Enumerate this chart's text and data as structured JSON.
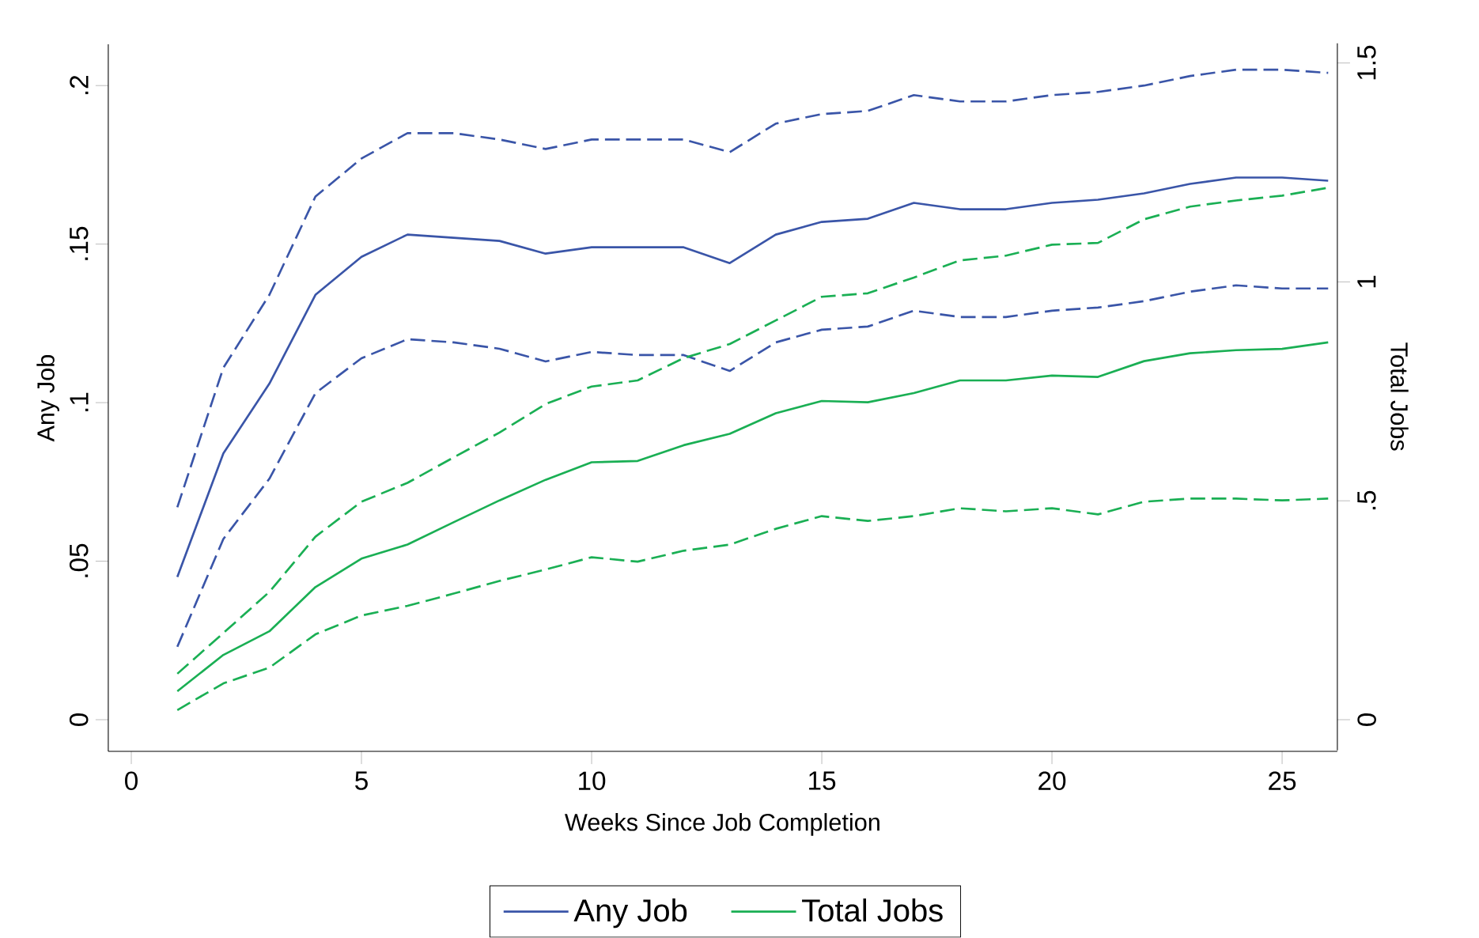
{
  "chart_data": {
    "type": "line",
    "xlabel": "Weeks Since Job Completion",
    "ylabel": "Any Job",
    "y2label": "Total Jobs",
    "x": [
      1,
      2,
      3,
      4,
      5,
      6,
      7,
      8,
      9,
      10,
      11,
      12,
      13,
      14,
      15,
      16,
      17,
      18,
      19,
      20,
      21,
      22,
      23,
      24,
      25,
      26
    ],
    "xlim": [
      -0.5,
      26.2
    ],
    "xticks": [
      0,
      5,
      10,
      15,
      20,
      25
    ],
    "ylim": [
      -0.01,
      0.213
    ],
    "yticks": [
      {
        "value": 0,
        "label": "0"
      },
      {
        "value": 0.05,
        "label": ".05"
      },
      {
        "value": 0.1,
        "label": ".1"
      },
      {
        "value": 0.15,
        "label": ".15"
      },
      {
        "value": 0.2,
        "label": ".2"
      }
    ],
    "y2lim": [
      -0.07,
      1.545
    ],
    "y2ticks": [
      0,
      {
        "value": 0.5,
        "label": ".5"
      },
      1,
      1.5
    ],
    "legend": "bottom",
    "grid": false,
    "marker": "none",
    "series": [
      {
        "name": "Any Job",
        "color": "#3a55a8",
        "line_style": "solid",
        "axis": "y",
        "values": [
          0.045,
          0.084,
          0.106,
          0.134,
          0.146,
          0.153,
          0.152,
          0.151,
          0.147,
          0.149,
          0.149,
          0.149,
          0.144,
          0.153,
          0.157,
          0.158,
          0.163,
          0.161,
          0.161,
          0.163,
          0.164,
          0.166,
          0.169,
          0.171,
          0.171,
          0.17
        ]
      },
      {
        "color": "#3a55a8",
        "line_style": "dashed",
        "axis": "y",
        "values": [
          0.067,
          0.111,
          0.134,
          0.165,
          0.177,
          0.185,
          0.185,
          0.183,
          0.18,
          0.183,
          0.183,
          0.183,
          0.179,
          0.188,
          0.191,
          0.192,
          0.197,
          0.195,
          0.195,
          0.197,
          0.198,
          0.2,
          0.203,
          0.205,
          0.205,
          0.204
        ]
      },
      {
        "color": "#3a55a8",
        "line_style": "dashed",
        "axis": "y",
        "values": [
          0.023,
          0.057,
          0.076,
          0.103,
          0.114,
          0.12,
          0.119,
          0.117,
          0.113,
          0.116,
          0.115,
          0.115,
          0.11,
          0.119,
          0.123,
          0.124,
          0.129,
          0.127,
          0.127,
          0.129,
          0.13,
          0.132,
          0.135,
          0.137,
          0.136,
          0.136
        ]
      },
      {
        "name": "Total Jobs",
        "color": "#1aaf54",
        "line_style": "solid",
        "axis": "y2",
        "values": [
          0.065,
          0.148,
          0.202,
          0.303,
          0.368,
          0.4,
          0.451,
          0.501,
          0.548,
          0.588,
          0.591,
          0.627,
          0.653,
          0.7,
          0.728,
          0.725,
          0.746,
          0.775,
          0.775,
          0.786,
          0.783,
          0.819,
          0.837,
          0.844,
          0.847,
          0.862
        ]
      },
      {
        "color": "#1aaf54",
        "line_style": "dashed",
        "axis": "y2",
        "values": [
          0.105,
          0.198,
          0.292,
          0.418,
          0.498,
          0.541,
          0.599,
          0.656,
          0.721,
          0.761,
          0.775,
          0.826,
          0.858,
          0.912,
          0.966,
          0.974,
          1.01,
          1.049,
          1.06,
          1.085,
          1.089,
          1.143,
          1.172,
          1.186,
          1.197,
          1.215
        ]
      },
      {
        "color": "#1aaf54",
        "line_style": "dashed",
        "axis": "y2",
        "values": [
          0.022,
          0.083,
          0.119,
          0.195,
          0.238,
          0.26,
          0.288,
          0.317,
          0.343,
          0.371,
          0.361,
          0.386,
          0.4,
          0.436,
          0.465,
          0.454,
          0.465,
          0.483,
          0.476,
          0.483,
          0.469,
          0.498,
          0.505,
          0.505,
          0.501,
          0.505
        ]
      }
    ]
  }
}
